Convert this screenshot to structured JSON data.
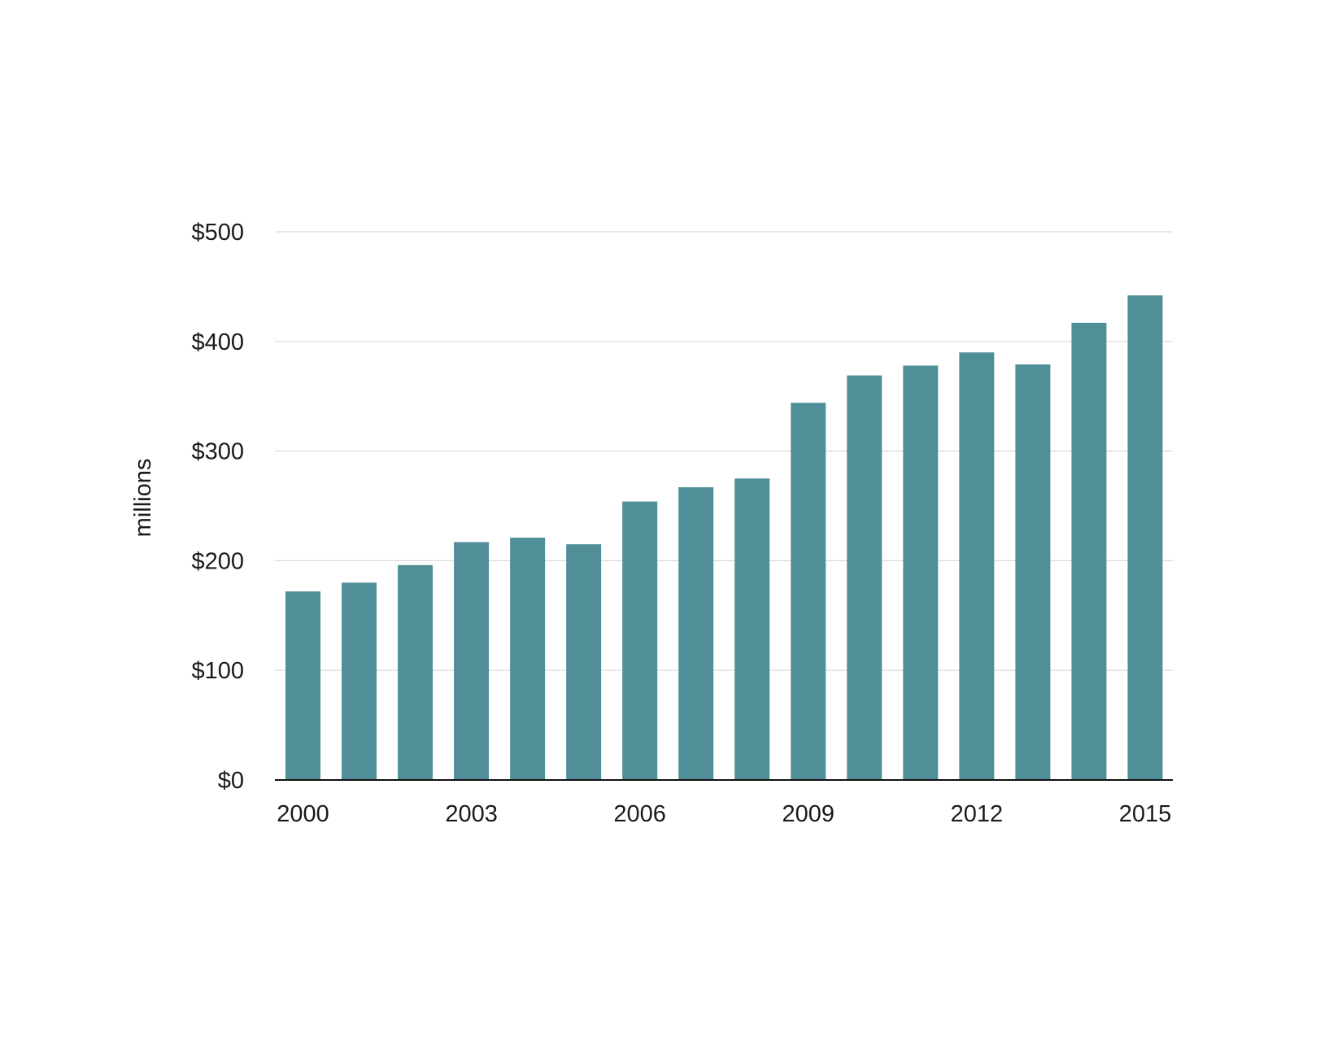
{
  "chart_data": {
    "type": "bar",
    "categories": [
      "2000",
      "2001",
      "2002",
      "2003",
      "2004",
      "2005",
      "2006",
      "2007",
      "2008",
      "2009",
      "2010",
      "2011",
      "2012",
      "2013",
      "2014",
      "2015"
    ],
    "x_tick_labels": [
      "2000",
      "2003",
      "2006",
      "2009",
      "2012",
      "2015"
    ],
    "values": [
      172,
      180,
      196,
      217,
      221,
      215,
      254,
      267,
      275,
      344,
      369,
      378,
      390,
      379,
      417,
      442
    ],
    "title": "",
    "xlabel": "",
    "ylabel": "millions",
    "ylim": [
      0,
      500
    ],
    "y_ticks": [
      0,
      100,
      200,
      300,
      400,
      500
    ],
    "y_tick_labels": [
      "$0",
      "$100",
      "$200",
      "$300",
      "$400",
      "$500"
    ],
    "grid": "horizontal",
    "legend": "none",
    "colors": {
      "bar": "#518f98",
      "grid": "#d9d9d9",
      "axis": "#111111",
      "text": "#1a1a1a"
    }
  }
}
